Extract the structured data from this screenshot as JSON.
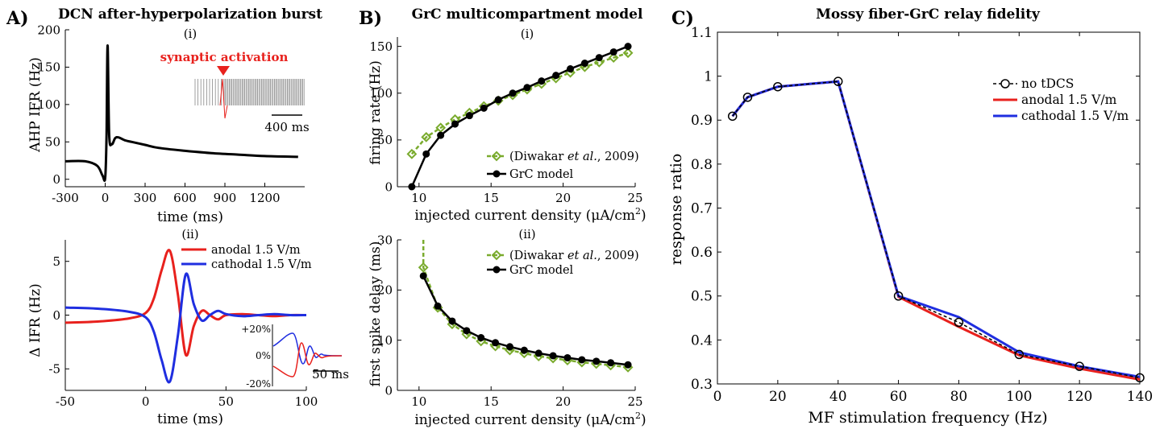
{
  "panels": {
    "A": {
      "letter": "A)",
      "title": "DCN after-hyperpolarization burst",
      "i": {
        "label": "(i)",
        "xlabel": "time (ms)",
        "ylabel": "AHP IFR (Hz)",
        "xticks": [
          "-300",
          "0",
          "300",
          "600",
          "900",
          "1200"
        ],
        "yticks": [
          "0",
          "50",
          "100",
          "150",
          "200"
        ],
        "inset_label": "synaptic activation",
        "inset_scale": "400 ms"
      },
      "ii": {
        "label": "(ii)",
        "xlabel": "time (ms)",
        "ylabel": "Δ IFR (Hz)",
        "xticks": [
          "-50",
          "0",
          "50",
          "100"
        ],
        "yticks": [
          "-5",
          "0",
          "5"
        ],
        "legend": [
          "anodal 1.5 V/m",
          "cathodal 1.5 V/m"
        ],
        "inset_yticks": [
          "+20%",
          "0%",
          "-20%"
        ],
        "inset_scale": "50 ms"
      }
    },
    "B": {
      "letter": "B)",
      "title": "GrC multicompartment model",
      "i": {
        "label": "(i)",
        "xlabel": "injected current density (μA/cm",
        "xlabel_sup": "2",
        "xlabel_end": ")",
        "ylabel": "firing rate (Hz)",
        "xticks": [
          "10",
          "15",
          "20",
          "25"
        ],
        "yticks": [
          "0",
          "50",
          "100",
          "150"
        ],
        "legend_ref_pre": "(Diwakar ",
        "legend_ref_it": "et al.",
        "legend_ref_post": ", 2009)",
        "legend_model": "GrC model"
      },
      "ii": {
        "label": "(ii)",
        "xlabel": "injected current density (μA/cm",
        "xlabel_sup": "2",
        "xlabel_end": ")",
        "ylabel": "first spike delay (ms)",
        "xticks": [
          "10",
          "15",
          "20",
          "25"
        ],
        "yticks": [
          "0",
          "10",
          "20",
          "30"
        ],
        "legend_ref_pre": "(Diwakar ",
        "legend_ref_it": "et al.",
        "legend_ref_post": ", 2009)",
        "legend_model": "GrC model"
      }
    },
    "C": {
      "letter": "C)",
      "title": "Mossy fiber-GrC relay fidelity",
      "xlabel": "MF stimulation frequency (Hz)",
      "ylabel": "response ratio",
      "xticks": [
        "0",
        "20",
        "40",
        "60",
        "80",
        "100",
        "120",
        "140"
      ],
      "yticks": [
        "0.3",
        "0.4",
        "0.5",
        "0.6",
        "0.7",
        "0.8",
        "0.9",
        "1",
        "1.1"
      ],
      "legend": [
        "no tDCS",
        "anodal 1.5 V/m",
        "cathodal 1.5 V/m"
      ]
    }
  },
  "colors": {
    "anodal": "#e8211d",
    "cathodal": "#1f2ee0",
    "model": "#000000",
    "reference": "#7aab2e"
  },
  "chart_data": [
    {
      "type": "line",
      "title": "DCN after-hyperpolarization burst",
      "xlabel": "time (ms)",
      "ylabel": "AHP IFR (Hz)",
      "xlim": [
        -300,
        1500
      ],
      "ylim": [
        -10,
        200
      ],
      "series": [
        {
          "x": [
            -300,
            -150,
            -60,
            -20,
            0,
            10,
            18,
            30,
            50,
            75,
            100,
            150,
            200,
            300,
            400,
            600,
            800,
            1000,
            1200,
            1450
          ],
          "y": [
            24,
            24,
            18,
            5,
            2,
            60,
            179,
            60,
            47,
            55,
            56,
            52,
            50,
            46,
            42,
            38,
            35,
            33,
            31,
            30
          ]
        }
      ]
    },
    {
      "type": "line",
      "xlabel": "time (ms)",
      "ylabel": "Δ IFR (Hz)",
      "xlim": [
        -50,
        100
      ],
      "ylim": [
        -7,
        7
      ],
      "series": [
        {
          "name": "anodal 1.5 V/m",
          "x": [
            -50,
            -30,
            -10,
            0,
            5,
            10,
            15,
            20,
            25,
            30,
            35,
            40,
            45,
            50,
            60,
            70,
            80,
            90,
            100
          ],
          "y": [
            -0.7,
            -0.6,
            -0.3,
            0.2,
            1.5,
            4.2,
            6.0,
            2.0,
            -3.7,
            -1.0,
            0.4,
            0.0,
            -0.4,
            0.0,
            0.1,
            0.0,
            -0.1,
            0.0,
            0.0
          ]
        },
        {
          "name": "cathodal 1.5 V/m",
          "x": [
            -50,
            -30,
            -10,
            0,
            5,
            10,
            15,
            20,
            25,
            30,
            35,
            40,
            45,
            50,
            60,
            70,
            80,
            90,
            100
          ],
          "y": [
            0.7,
            0.6,
            0.3,
            -0.2,
            -1.5,
            -4.2,
            -6.2,
            -2.0,
            3.8,
            1.0,
            -0.5,
            0.0,
            0.4,
            0.1,
            -0.1,
            0.0,
            0.1,
            0.0,
            0.0
          ]
        }
      ]
    },
    {
      "type": "line",
      "xlabel": "injected current density (μA/cm2)",
      "ylabel": "firing rate (Hz)",
      "xlim": [
        8.5,
        25
      ],
      "ylim": [
        0,
        160
      ],
      "series": [
        {
          "name": "(Diwakar et al., 2009)",
          "x": [
            9.5,
            10.5,
            11.5,
            12.5,
            13.5,
            14.5,
            15.5,
            16.5,
            17.5,
            18.5,
            19.5,
            20.5,
            21.5,
            22.5,
            23.5,
            24.5
          ],
          "y": [
            35,
            53,
            63,
            72,
            79,
            86,
            92,
            98,
            104,
            110,
            116,
            122,
            128,
            133,
            138,
            143
          ]
        },
        {
          "name": "GrC model",
          "x": [
            9.5,
            10.5,
            11.5,
            12.5,
            13.5,
            14.5,
            15.5,
            16.5,
            17.5,
            18.5,
            19.5,
            20.5,
            21.5,
            22.5,
            23.5,
            24.5
          ],
          "y": [
            0,
            35,
            55,
            67,
            76,
            84,
            93,
            100,
            106,
            113,
            119,
            126,
            132,
            138,
            144,
            150
          ]
        }
      ]
    },
    {
      "type": "line",
      "xlabel": "injected current density (μA/cm2)",
      "ylabel": "first spike delay (ms)",
      "xlim": [
        8.5,
        25
      ],
      "ylim": [
        0,
        30
      ],
      "series": [
        {
          "name": "(Diwakar et al., 2009)",
          "x": [
            10.3,
            10.3,
            11.3,
            12.3,
            13.3,
            14.3,
            15.3,
            16.3,
            17.3,
            18.3,
            19.3,
            20.3,
            21.3,
            22.3,
            23.3,
            24.5
          ],
          "y": [
            30,
            24.5,
            16.5,
            13.2,
            11.2,
            9.8,
            8.8,
            8.0,
            7.4,
            6.8,
            6.4,
            6.0,
            5.6,
            5.3,
            5.0,
            4.6
          ]
        },
        {
          "name": "GrC model",
          "x": [
            10.3,
            11.3,
            12.3,
            13.3,
            14.3,
            15.3,
            16.3,
            17.3,
            18.3,
            19.3,
            20.3,
            21.3,
            22.3,
            23.3,
            24.5
          ],
          "y": [
            22.8,
            16.8,
            13.8,
            11.9,
            10.5,
            9.5,
            8.7,
            8.0,
            7.4,
            6.9,
            6.5,
            6.1,
            5.8,
            5.5,
            5.1
          ]
        }
      ]
    },
    {
      "type": "line",
      "title": "Mossy fiber-GrC relay fidelity",
      "xlabel": "MF stimulation frequency (Hz)",
      "ylabel": "response ratio",
      "xlim": [
        0,
        140
      ],
      "ylim": [
        0.3,
        1.1
      ],
      "series": [
        {
          "name": "no tDCS",
          "x": [
            5,
            10,
            20,
            40,
            60,
            80,
            100,
            120,
            140
          ],
          "y": [
            0.909,
            0.952,
            0.976,
            0.988,
            0.5,
            0.44,
            0.367,
            0.34,
            0.314
          ]
        },
        {
          "name": "anodal 1.5 V/m",
          "x": [
            5,
            10,
            20,
            40,
            60,
            80,
            100,
            120,
            140
          ],
          "y": [
            0.909,
            0.952,
            0.976,
            0.988,
            0.498,
            0.43,
            0.365,
            0.335,
            0.31
          ]
        },
        {
          "name": "cathodal 1.5 V/m",
          "x": [
            5,
            10,
            20,
            40,
            60,
            80,
            100,
            120,
            140
          ],
          "y": [
            0.909,
            0.952,
            0.976,
            0.988,
            0.5,
            0.452,
            0.372,
            0.34,
            0.316
          ]
        }
      ]
    }
  ]
}
